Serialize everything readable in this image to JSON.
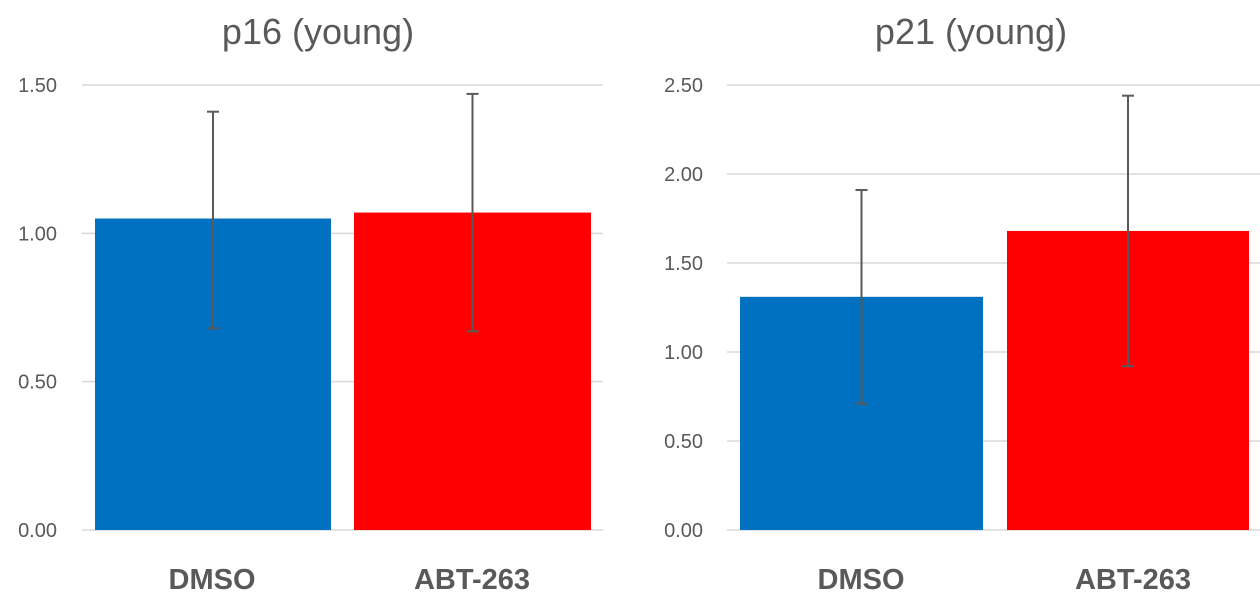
{
  "chart_data": [
    {
      "type": "bar",
      "title": "p16 (young)",
      "categories": [
        "DMSO",
        "ABT-263"
      ],
      "values": [
        1.05,
        1.07
      ],
      "error_high": [
        1.41,
        1.47
      ],
      "error_low": [
        0.68,
        0.67
      ],
      "colors": [
        "#0070c0",
        "#ff0000"
      ],
      "ylim": [
        0,
        1.5
      ],
      "yticks": [
        "0.00",
        "0.50",
        "1.00",
        "1.50"
      ],
      "ytick_values": [
        0,
        0.5,
        1.0,
        1.5
      ],
      "xlabel": "",
      "ylabel": "",
      "grid": true,
      "legend": "none"
    },
    {
      "type": "bar",
      "title": "p21 (young)",
      "categories": [
        "DMSO",
        "ABT-263"
      ],
      "values": [
        1.31,
        1.68
      ],
      "error_high": [
        1.91,
        2.44
      ],
      "error_low": [
        0.71,
        0.92
      ],
      "colors": [
        "#0070c0",
        "#ff0000"
      ],
      "ylim": [
        0,
        2.5
      ],
      "yticks": [
        "0.00",
        "0.50",
        "1.00",
        "1.50",
        "2.00",
        "2.50"
      ],
      "ytick_values": [
        0,
        0.5,
        1.0,
        1.5,
        2.0,
        2.5
      ],
      "xlabel": "",
      "ylabel": "",
      "grid": true,
      "legend": "none"
    }
  ]
}
